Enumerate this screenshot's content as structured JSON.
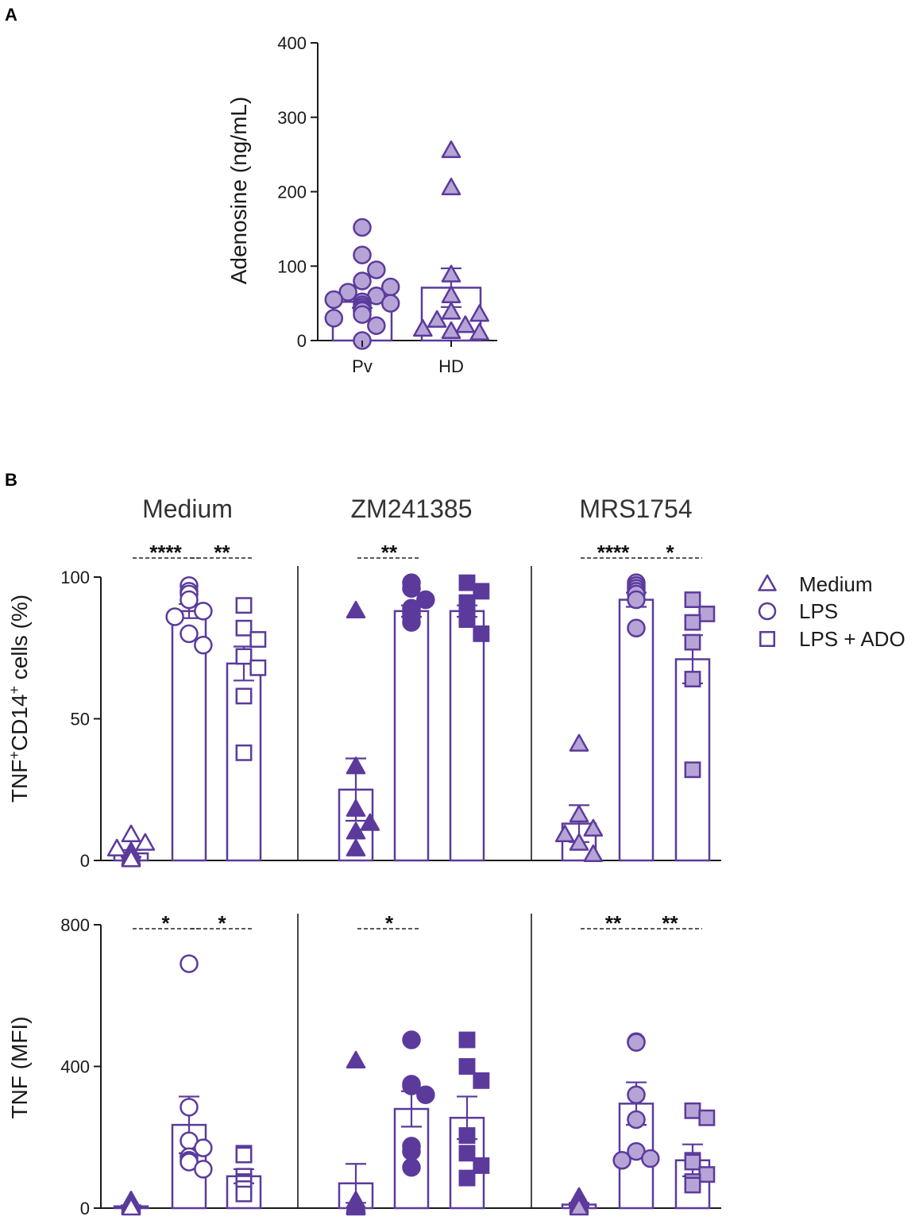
{
  "figure": {
    "panel_a_letter": "A",
    "panel_b_letter": "B"
  },
  "colors": {
    "accent": "#5b3a9c",
    "fill_light": "#b6a4d6",
    "fill_dark": "#5b3a9c",
    "text": "#1a1a1a"
  },
  "legend": {
    "items": [
      {
        "label": "Medium",
        "marker": "triangle"
      },
      {
        "label": "LPS",
        "marker": "circle"
      },
      {
        "label": "LPS + ADO",
        "marker": "square"
      }
    ]
  },
  "chart_data": [
    {
      "id": "A",
      "type": "bar",
      "ylabel": "Adenosine (ng/mL)",
      "ylim": [
        0,
        400
      ],
      "yticks": [
        0,
        100,
        200,
        300,
        400
      ],
      "categories": [
        "Pv",
        "HD"
      ],
      "series": [
        {
          "name": "Pv",
          "marker": "circle",
          "mean": 52,
          "sem": 8,
          "points": [
            152,
            115,
            95,
            80,
            72,
            65,
            60,
            55,
            52,
            50,
            48,
            45,
            42,
            40,
            35,
            30,
            20,
            0
          ]
        },
        {
          "name": "HD",
          "marker": "triangle",
          "mean": 71,
          "sem": 26,
          "points": [
            255,
            205,
            88,
            60,
            38,
            35,
            27,
            20,
            15,
            12,
            10
          ]
        }
      ]
    },
    {
      "id": "B-top",
      "type": "bar",
      "ylabel_main": "TNF",
      "ylabel_sup1": "+",
      "ylabel_mid": "CD14",
      "ylabel_sup2": "+",
      "ylabel_tail": " cells (%)",
      "ylim": [
        0,
        100
      ],
      "yticks": [
        0,
        50,
        100
      ],
      "groups": [
        {
          "title": "Medium",
          "fill": "none",
          "bars": [
            {
              "name": "Medium",
              "marker": "triangle",
              "mean": 2.5,
              "sem": 1.2,
              "points": [
                9,
                6,
                4,
                3,
                2,
                1,
                0.5,
                0.2
              ]
            },
            {
              "name": "LPS",
              "marker": "circle",
              "mean": 88,
              "sem": 2.5,
              "points": [
                97,
                95,
                94,
                92,
                88,
                86,
                80,
                76
              ]
            },
            {
              "name": "LPS + ADO",
              "marker": "square",
              "mean": 69.5,
              "sem": 6,
              "points": [
                90,
                82,
                78,
                72,
                68,
                58,
                38
              ]
            }
          ],
          "sig": [
            {
              "from": 0,
              "to": 1,
              "label": "****"
            },
            {
              "from": 1,
              "to": 2,
              "label": "**"
            }
          ]
        },
        {
          "title": "ZM241385",
          "fill": "dark",
          "bars": [
            {
              "name": "Medium",
              "marker": "triangle",
              "mean": 25,
              "sem": 11,
              "points": [
                88,
                33,
                18,
                13,
                10,
                4
              ]
            },
            {
              "name": "LPS",
              "marker": "circle",
              "mean": 88,
              "sem": 2,
              "points": [
                98,
                96,
                92,
                89,
                88,
                87,
                86,
                84
              ]
            },
            {
              "name": "LPS + ADO",
              "marker": "square",
              "mean": 88,
              "sem": 2,
              "points": [
                98,
                95,
                91,
                90,
                88,
                86,
                85,
                80
              ]
            }
          ],
          "sig": [
            {
              "from": 0,
              "to": 1,
              "label": "**"
            }
          ]
        },
        {
          "title": "MRS1754",
          "fill": "light",
          "bars": [
            {
              "name": "Medium",
              "marker": "triangle",
              "mean": 13,
              "sem": 6.5,
              "points": [
                41,
                16,
                11,
                9,
                6,
                2
              ]
            },
            {
              "name": "LPS",
              "marker": "circle",
              "mean": 92,
              "sem": 2.5,
              "points": [
                98,
                97,
                96,
                95,
                94,
                92,
                82
              ]
            },
            {
              "name": "LPS + ADO",
              "marker": "square",
              "mean": 71,
              "sem": 8.5,
              "points": [
                92,
                87,
                84,
                77,
                64,
                32
              ]
            }
          ],
          "sig": [
            {
              "from": 0,
              "to": 1,
              "label": "****"
            },
            {
              "from": 1,
              "to": 2,
              "label": "*"
            }
          ]
        }
      ]
    },
    {
      "id": "B-bottom",
      "type": "bar",
      "ylabel": "TNF (MFI)",
      "ylim": [
        0,
        800
      ],
      "yticks": [
        0,
        400,
        800
      ],
      "groups": [
        {
          "title": "Medium",
          "fill": "none",
          "bars": [
            {
              "name": "Medium",
              "marker": "triangle",
              "mean": 5,
              "sem": 3,
              "points": [
                20,
                15,
                12,
                8,
                5,
                3,
                2,
                0
              ]
            },
            {
              "name": "LPS",
              "marker": "circle",
              "mean": 235,
              "sem": 80,
              "points": [
                690,
                285,
                190,
                170,
                145,
                135,
                130,
                110
              ]
            },
            {
              "name": "LPS + ADO",
              "marker": "square",
              "mean": 90,
              "sem": 20,
              "points": [
                155,
                150,
                90,
                75,
                70,
                55,
                40
              ]
            }
          ],
          "sig": [
            {
              "from": 0,
              "to": 1,
              "label": "*"
            },
            {
              "from": 1,
              "to": 2,
              "label": "*"
            }
          ]
        },
        {
          "title": "ZM241385",
          "fill": "dark",
          "bars": [
            {
              "name": "Medium",
              "marker": "triangle",
              "mean": 70,
              "sem": 55,
              "points": [
                415,
                20,
                10,
                5,
                3,
                2,
                0
              ]
            },
            {
              "name": "LPS",
              "marker": "circle",
              "mean": 280,
              "sem": 50,
              "points": [
                475,
                350,
                345,
                320,
                175,
                160,
                115
              ]
            },
            {
              "name": "LPS + ADO",
              "marker": "square",
              "mean": 255,
              "sem": 60,
              "points": [
                475,
                400,
                360,
                205,
                155,
                120,
                85
              ]
            }
          ],
          "sig": [
            {
              "from": 0,
              "to": 1,
              "label": "*"
            }
          ]
        },
        {
          "title": "MRS1754",
          "fill": "light",
          "bars": [
            {
              "name": "Medium",
              "marker": "triangle",
              "mean": 10,
              "sem": 5,
              "points": [
                30,
                20,
                10,
                5,
                0
              ]
            },
            {
              "name": "LPS",
              "marker": "circle",
              "mean": 295,
              "sem": 60,
              "points": [
                470,
                468,
                320,
                250,
                160,
                140,
                135
              ]
            },
            {
              "name": "LPS + ADO",
              "marker": "square",
              "mean": 135,
              "sem": 45,
              "points": [
                275,
                255,
                135,
                130,
                95,
                75,
                65
              ]
            }
          ],
          "sig": [
            {
              "from": 0,
              "to": 1,
              "label": "**"
            },
            {
              "from": 1,
              "to": 2,
              "label": "**"
            }
          ]
        }
      ]
    }
  ]
}
